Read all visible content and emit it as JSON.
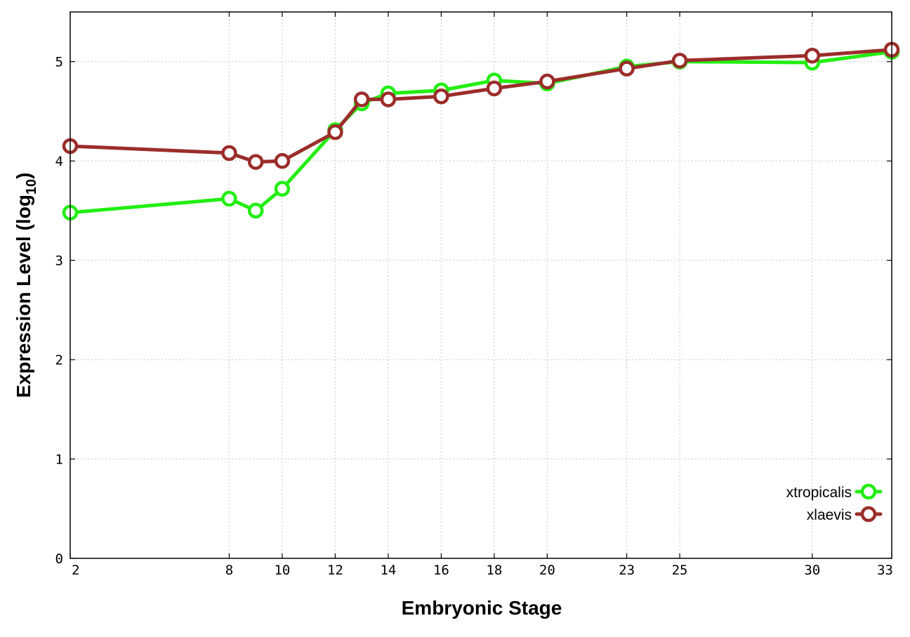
{
  "chart_data": {
    "type": "line",
    "title": "",
    "xlabel": "Embryonic Stage",
    "ylabel_main": "Expression Level (log",
    "ylabel_sub": "10",
    "ylabel_close": ")",
    "xlim": [
      2,
      33
    ],
    "ylim": [
      0,
      5.5
    ],
    "x_ticks": [
      2,
      8,
      10,
      12,
      14,
      16,
      18,
      20,
      23,
      25,
      30,
      33
    ],
    "x_tick_labels": [
      "2",
      "8",
      "10",
      "12",
      "14",
      "16",
      "18",
      "20",
      "23",
      "25",
      "30",
      "33"
    ],
    "y_ticks": [
      0,
      1,
      2,
      3,
      4,
      5
    ],
    "y_tick_labels": [
      "0",
      "1",
      "2",
      "3",
      "4",
      "5"
    ],
    "grid": true,
    "legend_position": "bottom-right",
    "series": [
      {
        "name": "xtropicalis",
        "color": "#22ee11",
        "marker": "open-circle",
        "x": [
          2,
          8,
          9,
          10,
          12,
          13,
          14,
          16,
          18,
          20,
          23,
          25,
          30,
          33
        ],
        "y": [
          3.48,
          3.62,
          3.5,
          3.72,
          4.31,
          4.58,
          4.68,
          4.71,
          4.81,
          4.78,
          4.95,
          5.0,
          4.99,
          5.1
        ]
      },
      {
        "name": "xlaevis",
        "color": "#9b2d2a",
        "marker": "open-circle",
        "x": [
          2,
          8,
          9,
          10,
          12,
          13,
          14,
          16,
          18,
          20,
          23,
          25,
          30,
          33
        ],
        "y": [
          4.15,
          4.08,
          3.99,
          4.0,
          4.29,
          4.62,
          4.62,
          4.65,
          4.73,
          4.8,
          4.93,
          5.01,
          5.06,
          5.12
        ]
      }
    ]
  }
}
